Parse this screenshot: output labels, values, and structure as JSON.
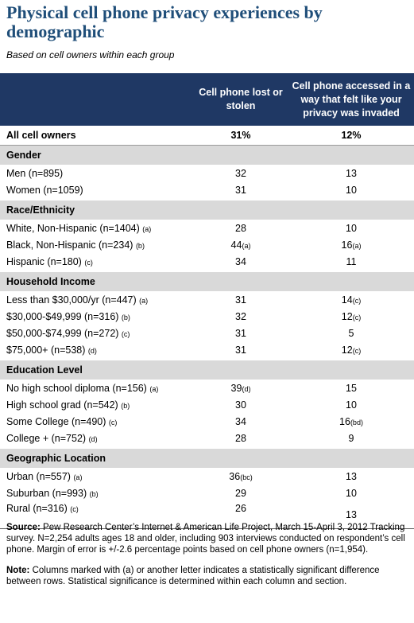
{
  "title": "Physical cell phone privacy experiences by demographic",
  "subtitle": "Based on cell owners within each group",
  "columns": {
    "col1": "Cell phone lost or stolen",
    "col2": "Cell phone accessed in a way that felt like your privacy was invaded"
  },
  "total": {
    "label": "All cell owners",
    "c1": "31%",
    "c2": "12%"
  },
  "sections": {
    "gender": {
      "title": "Gender",
      "rows": [
        {
          "label": "Men (n=895)",
          "mark": "",
          "c1": "32",
          "c1_sig": "",
          "c2": "13",
          "c2_sig": ""
        },
        {
          "label": "Women (n=1059)",
          "mark": "",
          "c1": "31",
          "c1_sig": "",
          "c2": "10",
          "c2_sig": ""
        }
      ]
    },
    "race": {
      "title": "Race/Ethnicity",
      "rows": [
        {
          "label": "White, Non-Hispanic (n=1404)",
          "mark": "(a)",
          "c1": "28",
          "c1_sig": "",
          "c2": "10",
          "c2_sig": ""
        },
        {
          "label": "Black, Non-Hispanic (n=234)",
          "mark": "(b)",
          "c1": "44",
          "c1_sig": "(a)",
          "c2": "16",
          "c2_sig": "(a)"
        },
        {
          "label": "Hispanic (n=180)",
          "mark": "(c)",
          "c1": "34",
          "c1_sig": "",
          "c2": "11",
          "c2_sig": ""
        }
      ]
    },
    "income": {
      "title": "Household Income",
      "rows": [
        {
          "label": "Less than $30,000/yr (n=447)",
          "mark": "(a)",
          "c1": "31",
          "c1_sig": "",
          "c2": "14",
          "c2_sig": "(c)"
        },
        {
          "label": "$30,000-$49,999 (n=316)",
          "mark": "(b)",
          "c1": "32",
          "c1_sig": "",
          "c2": "12",
          "c2_sig": "(c)"
        },
        {
          "label": "$50,000-$74,999 (n=272)",
          "mark": "(c)",
          "c1": "31",
          "c1_sig": "",
          "c2": "5",
          "c2_sig": ""
        },
        {
          "label": "$75,000+ (n=538)",
          "mark": "(d)",
          "c1": "31",
          "c1_sig": "",
          "c2": "12",
          "c2_sig": "(c)"
        }
      ]
    },
    "education": {
      "title": "Education Level",
      "rows": [
        {
          "label": "No high school diploma (n=156)",
          "mark": "(a)",
          "c1": "39",
          "c1_sig": "(d)",
          "c2": "15",
          "c2_sig": ""
        },
        {
          "label": "High school grad (n=542)",
          "mark": "(b)",
          "c1": "30",
          "c1_sig": "",
          "c2": "10",
          "c2_sig": ""
        },
        {
          "label": "Some College (n=490)",
          "mark": "(c)",
          "c1": "34",
          "c1_sig": "",
          "c2": "16",
          "c2_sig": "(bd)"
        },
        {
          "label": "College + (n=752)",
          "mark": "(d)",
          "c1": "28",
          "c1_sig": "",
          "c2": "9",
          "c2_sig": ""
        }
      ]
    },
    "geo": {
      "title": "Geographic Location",
      "rows": [
        {
          "label": "Urban (n=557)",
          "mark": "(a)",
          "c1": "36",
          "c1_sig": "(bc)",
          "c2": "13",
          "c2_sig": ""
        },
        {
          "label": "Suburban (n=993)",
          "mark": "(b)",
          "c1": "29",
          "c1_sig": "",
          "c2": "10",
          "c2_sig": ""
        },
        {
          "label": "Rural (n=316)",
          "mark": "(c)",
          "c1": "26",
          "c1_sig": "",
          "c2": "13",
          "c2_sig": ""
        }
      ]
    }
  },
  "notes": {
    "source_label": "Source:",
    "source_text": " Pew Research Center’s Internet & American Life Project, March 15-April 3, 2012 Tracking survey. N=2,254 adults ages 18 and older, including 903 interviews conducted on respondent’s cell phone. Margin of error is +/-2.6 percentage points based on cell phone owners (n=1,954).",
    "note_label": "Note:",
    "note_text": " Columns marked with (a) or another letter indicates a statistically significant difference between rows. Statistical significance is determined within each column and section."
  }
}
